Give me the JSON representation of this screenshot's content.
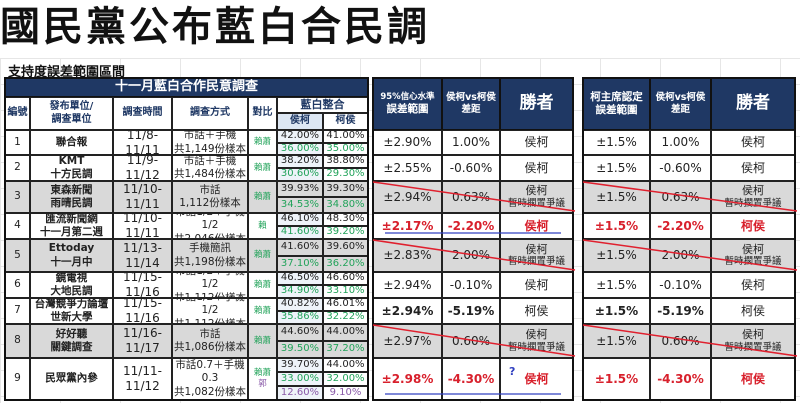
{
  "title": "國民黨公布藍白合民調",
  "subtitle": "支持度誤差範圍區間",
  "survey_table": {
    "title": "十一月藍白合作民意調查",
    "headers": {
      "no": "編號",
      "publisher": "發布單位/\n調查單位",
      "period": "調查時間",
      "method": "調查方式",
      "compare": "對比",
      "merge": "藍白整合",
      "hou_ko": "侯柯",
      "ko_hou": "柯侯"
    },
    "rows": [
      {
        "no": "1",
        "publisher": "聯合報",
        "period": "11/8-11/11",
        "method": "市話＋手機\n共1,149份樣本",
        "compare": "賴蕭",
        "hou_ko": [
          "42.00%",
          "36.00%"
        ],
        "ko_hou": [
          "41.00%",
          "35.00%"
        ],
        "grey": false
      },
      {
        "no": "2",
        "publisher": "KMT\n十方民調",
        "period": "11/9-11/12",
        "method": "市話＋手機\n共1,484份樣本",
        "compare": "賴蕭",
        "hou_ko": [
          "38.20%",
          "30.60%"
        ],
        "ko_hou": [
          "38.80%",
          "29.30%"
        ],
        "grey": false
      },
      {
        "no": "3",
        "publisher": "東森新聞\n雨晴民調",
        "period": "11/10-11/11",
        "method": "市話\n1,112份樣本",
        "compare": "賴蕭",
        "hou_ko": [
          "39.93%",
          "34.53%"
        ],
        "ko_hou": [
          "39.30%",
          "34.80%"
        ],
        "grey": true
      },
      {
        "no": "4",
        "publisher": "匯流新聞網\n十一月第二週",
        "period": "11/10-11/11",
        "method": "市話1/2＋手機1/2\n共2,046份樣本",
        "compare": "賴",
        "hou_ko": [
          "46.10%",
          "41.60%"
        ],
        "ko_hou": [
          "48.30%",
          "39.20%"
        ],
        "grey": false
      },
      {
        "no": "5",
        "publisher": "Ettoday\n十一月中",
        "period": "11/13-11/14",
        "method": "手機簡訊\n共1,198份樣本",
        "compare": "賴蕭",
        "hou_ko": [
          "41.60%",
          "37.10%"
        ],
        "ko_hou": [
          "39.60%",
          "36.20%"
        ],
        "grey": true
      },
      {
        "no": "6",
        "publisher": "鏡電視\n大地民調",
        "period": "11/15-11/16",
        "method": "市話1/2＋手機1/2\n共1,112份樣本",
        "compare": "賴蕭",
        "hou_ko": [
          "46.50%",
          "34.90%"
        ],
        "ko_hou": [
          "46.60%",
          "33.10%"
        ],
        "grey": false
      },
      {
        "no": "7",
        "publisher": "台灣競爭力論壇\n世新大學",
        "period": "11/15-11/16",
        "method": "市話1/2＋手機1/2\n共1,112份樣本",
        "compare": "賴蕭",
        "hou_ko": [
          "40.82%",
          "35.86%"
        ],
        "ko_hou": [
          "46.01%",
          "32.22%"
        ],
        "grey": false
      },
      {
        "no": "8",
        "publisher": "好好聽\n關鍵調查",
        "period": "11/16-11/17",
        "method": "市話\n共1,086份樣本",
        "compare": "賴蕭",
        "hou_ko": [
          "44.60%",
          "39.50%"
        ],
        "ko_hou": [
          "44.00%",
          "37.20%"
        ],
        "grey": true
      },
      {
        "no": "9",
        "publisher": "民眾黨內參",
        "period": "11/11-11/12",
        "method": "市話0.7＋手機0.3\n共1,082份樣本",
        "compare": "賴蕭",
        "compare2": "郭",
        "hou_ko": [
          "39.70%",
          "33.00%",
          "12.60%"
        ],
        "ko_hou": [
          "44.00%",
          "32.00%",
          "9.10%"
        ],
        "grey": false
      }
    ]
  },
  "margin_table_95": {
    "headers": {
      "margin_small": "95%信心水準",
      "margin": "誤差範圍",
      "gap": "侯柯vs柯侯\n差距",
      "winner": "勝者"
    },
    "rows": [
      {
        "margin": "±2.90%",
        "gap": "1.00%",
        "winner": "侯柯"
      },
      {
        "margin": "±2.55%",
        "gap": "-0.60%",
        "winner": "侯柯"
      },
      {
        "margin": "±2.94%",
        "gap": "0.63%",
        "winner": "侯柯\n暫時擱置爭議",
        "struck": true
      },
      {
        "margin": "±2.17%",
        "gap": "-2.20%",
        "winner": "侯柯",
        "red": true,
        "underline": true
      },
      {
        "margin": "±2.83%",
        "gap": "2.00%",
        "winner": "侯柯\n暫時擱置爭議",
        "struck": true
      },
      {
        "margin": "±2.94%",
        "gap": "-0.10%",
        "winner": "侯柯"
      },
      {
        "margin": "±2.94%",
        "gap": "-5.19%",
        "winner": "柯侯",
        "bold": true
      },
      {
        "margin": "±2.97%",
        "gap": "0.60%",
        "winner": "侯柯\n暫時擱置爭議",
        "struck": true
      },
      {
        "margin": "±2.98%",
        "gap": "-4.30%",
        "winner": "侯柯",
        "red": true,
        "underline": true,
        "mark": "?"
      }
    ]
  },
  "margin_table_ko": {
    "headers": {
      "margin": "柯主席認定\n誤差範圍",
      "gap": "侯柯vs柯侯\n差距",
      "winner": "勝者"
    },
    "rows": [
      {
        "margin": "±1.5%",
        "gap": "1.00%",
        "winner": "侯柯"
      },
      {
        "margin": "±1.5%",
        "gap": "-0.60%",
        "winner": "侯柯"
      },
      {
        "margin": "±1.5%",
        "gap": "0.63%",
        "winner": "侯柯\n暫時擱置爭議",
        "struck": true
      },
      {
        "margin": "±1.5%",
        "gap": "-2.20%",
        "winner": "柯侯",
        "red": true
      },
      {
        "margin": "±1.5%",
        "gap": "2.00%",
        "winner": "侯柯\n暫時擱置爭議",
        "struck": true
      },
      {
        "margin": "±1.5%",
        "gap": "-0.10%",
        "winner": "侯柯"
      },
      {
        "margin": "±1.5%",
        "gap": "-5.19%",
        "winner": "柯侯",
        "bold": true
      },
      {
        "margin": "±1.5%",
        "gap": "0.60%",
        "winner": "侯柯\n暫時擱置爭議",
        "struck": true
      },
      {
        "margin": "±1.5%",
        "gap": "-4.30%",
        "winner": "柯侯",
        "red": true
      }
    ]
  },
  "colors": {
    "header_navy": "#1f3864",
    "grey_row": "#d9d9d9",
    "green": "#22a35a",
    "red": "#d8202c",
    "strike_line": "#e0202e",
    "underline": "#3040c0"
  }
}
